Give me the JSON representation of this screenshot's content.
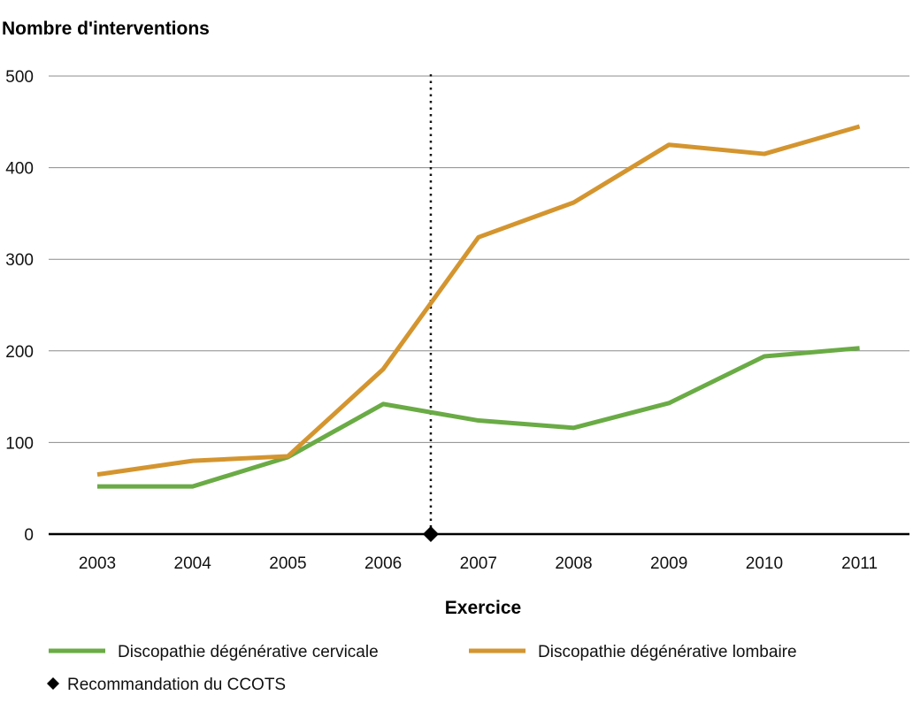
{
  "chart_data": {
    "type": "line",
    "title": "",
    "ylabel": "Nombre d'interventions",
    "xlabel": "Exercice",
    "categories": [
      "2003",
      "2004",
      "2005",
      "2006",
      "2007",
      "2008",
      "2009",
      "2010",
      "2011"
    ],
    "ylim": [
      0,
      500
    ],
    "yticks": [
      0,
      100,
      200,
      300,
      400,
      500
    ],
    "grid": true,
    "legend_position": "bottom",
    "series": [
      {
        "name": "Discopathie dégénérative cervicale",
        "color": "#6aab45",
        "values": [
          52,
          52,
          84,
          142,
          124,
          116,
          143,
          194,
          203
        ]
      },
      {
        "name": "Discopathie dégénérative lombaire",
        "color": "#d4952f",
        "values": [
          65,
          80,
          85,
          180,
          324,
          362,
          425,
          415,
          445
        ]
      }
    ],
    "annotations": [
      {
        "label": "Recommandation du CCOTS",
        "marker": "diamond",
        "line_style": "dotted",
        "x_between": [
          "2006",
          "2007"
        ],
        "y": 0
      }
    ]
  }
}
